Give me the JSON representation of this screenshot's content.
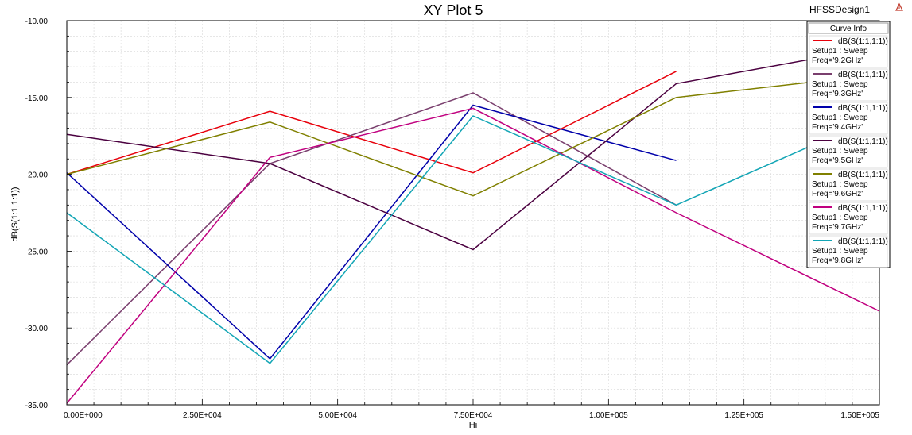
{
  "design_name": "HFSSDesign1",
  "legend_title": "Curve Info",
  "colors": {
    "background": "#ffffff",
    "grid": "#d8d8d8",
    "axis": "#000000",
    "warning_icon": "#c0392b"
  },
  "chart_data": {
    "type": "line",
    "title": "XY Plot 5",
    "xlabel": "Hi",
    "ylabel": "dB(S(1:1,1:1))",
    "xlim": [
      0,
      150000
    ],
    "ylim": [
      -35,
      -10
    ],
    "grid": true,
    "legend_position": "top-right",
    "x_tick_labels": [
      "0.00E+000",
      "2.50E+004",
      "5.00E+004",
      "7.50E+004",
      "1.00E+005",
      "1.25E+005",
      "1.50E+005"
    ],
    "y_tick_labels": [
      "-10.00",
      "-15.00",
      "-20.00",
      "-25.00",
      "-30.00",
      "-35.00"
    ],
    "series": [
      {
        "expr": "dB(S(1:1,1:1))",
        "setup": "Setup1 : Sweep",
        "freq": "Freq='9.2GHz'",
        "color": "#e8000b",
        "x": [
          0,
          37500,
          75000,
          112500
        ],
        "values": [
          -20.0,
          -15.9,
          -19.9,
          -13.3
        ]
      },
      {
        "expr": "dB(S(1:1,1:1))",
        "setup": "Setup1 : Sweep",
        "freq": "Freq='9.3GHz'",
        "color": "#7a3f6e",
        "x": [
          0,
          37500,
          75000,
          112500
        ],
        "values": [
          -32.4,
          -19.3,
          -14.7,
          -22.0
        ]
      },
      {
        "expr": "dB(S(1:1,1:1))",
        "setup": "Setup1 : Sweep",
        "freq": "Freq='9.4GHz'",
        "color": "#0000aa",
        "x": [
          0,
          37500,
          75000,
          112500
        ],
        "values": [
          -19.9,
          -32.0,
          -15.5,
          -19.1
        ]
      },
      {
        "expr": "dB(S(1:1,1:1))",
        "setup": "Setup1 : Sweep",
        "freq": "Freq='9.5GHz'",
        "color": "#4b0040",
        "x": [
          0,
          37500,
          75000,
          112500,
          150000
        ],
        "values": [
          -17.4,
          -19.3,
          -24.9,
          -14.1,
          -11.7
        ]
      },
      {
        "expr": "dB(S(1:1,1:1))",
        "setup": "Setup1 : Sweep",
        "freq": "Freq='9.6GHz'",
        "color": "#808000",
        "x": [
          0,
          37500,
          75000,
          112500,
          150000
        ],
        "values": [
          -20.0,
          -16.6,
          -21.4,
          -15.0,
          -13.5
        ]
      },
      {
        "expr": "dB(S(1:1,1:1))",
        "setup": "Setup1 : Sweep",
        "freq": "Freq='9.7GHz'",
        "color": "#c0007f",
        "x": [
          0,
          37500,
          75000,
          112500,
          150000
        ],
        "values": [
          -34.9,
          -18.9,
          -15.7,
          -22.5,
          -28.9
        ]
      },
      {
        "expr": "dB(S(1:1,1:1))",
        "setup": "Setup1 : Sweep",
        "freq": "Freq='9.8GHz'",
        "color": "#12a5b5",
        "x": [
          0,
          37500,
          75000,
          112500,
          150000
        ],
        "values": [
          -22.5,
          -32.3,
          -16.2,
          -22.0,
          -16.2
        ]
      }
    ]
  }
}
